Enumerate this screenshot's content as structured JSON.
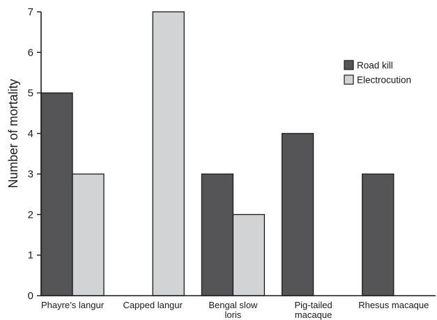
{
  "chart_data": {
    "type": "bar",
    "title": "",
    "xlabel": "",
    "ylabel": "Number of mortality",
    "ylim": [
      0,
      7
    ],
    "yticks": [
      0,
      1,
      2,
      3,
      4,
      5,
      6,
      7
    ],
    "grid": false,
    "legend_position": "top-right",
    "categories": [
      [
        "Phayre’s langur"
      ],
      [
        "Capped langur"
      ],
      [
        "Bengal slow",
        "loris"
      ],
      [
        "Pig-tailed",
        "macaque"
      ],
      [
        "Rhesus macaque"
      ]
    ],
    "series": [
      {
        "name": "Road kill",
        "color": "#555557",
        "values": [
          5,
          0,
          3,
          4,
          3
        ]
      },
      {
        "name": "Electrocution",
        "color": "#d2d3d5",
        "values": [
          3,
          7,
          2,
          0,
          0
        ]
      }
    ]
  }
}
